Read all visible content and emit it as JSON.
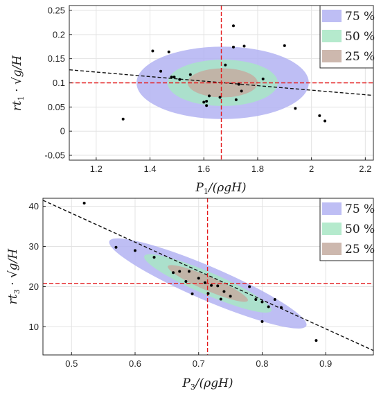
{
  "chart_data": [
    {
      "type": "scatter",
      "title": "",
      "xlabel": "P_1/(ρgH)",
      "ylabel": "rt_1 · √(g/H)",
      "xlabel_main": "P",
      "xlabel_sub": "1",
      "xlabel_rest": "/(ρgH)",
      "ylabel_main": "rt",
      "ylabel_sub": "1",
      "ylabel_rest": " · √g/H",
      "xlim": [
        1.1,
        2.23
      ],
      "ylim": [
        -0.06,
        0.26
      ],
      "xticks": [
        1.2,
        1.4,
        1.6,
        1.8,
        2.0,
        2.2
      ],
      "xtick_labels": [
        "1.2",
        "1.4",
        "1.6",
        "1.8",
        "2",
        "2.2"
      ],
      "yticks": [
        -0.05,
        0,
        0.05,
        0.1,
        0.15,
        0.2,
        0.25
      ],
      "ytick_labels": [
        "-0.05",
        "0",
        "0.05",
        "0.1",
        "0.15",
        "0.2",
        "0.25"
      ],
      "grid": true,
      "legend_position": "top-right",
      "legend": [
        "75 %",
        "50 %",
        "25 %"
      ],
      "points": [
        [
          1.3,
          0.025
        ],
        [
          1.41,
          0.166
        ],
        [
          1.44,
          0.124
        ],
        [
          1.47,
          0.164
        ],
        [
          1.48,
          0.112
        ],
        [
          1.49,
          0.112
        ],
        [
          1.51,
          0.107
        ],
        [
          1.55,
          0.117
        ],
        [
          1.6,
          0.06
        ],
        [
          1.61,
          0.053
        ],
        [
          1.61,
          0.062
        ],
        [
          1.62,
          0.073
        ],
        [
          1.66,
          0.07
        ],
        [
          1.68,
          0.137
        ],
        [
          1.71,
          0.218
        ],
        [
          1.71,
          0.174
        ],
        [
          1.72,
          0.065
        ],
        [
          1.73,
          0.097
        ],
        [
          1.74,
          0.083
        ],
        [
          1.75,
          0.176
        ],
        [
          1.82,
          0.108
        ],
        [
          1.9,
          0.177
        ],
        [
          1.94,
          0.047
        ],
        [
          2.03,
          0.032
        ],
        [
          2.05,
          0.021
        ]
      ],
      "mean": [
        1.665,
        0.1
      ],
      "ellipses": [
        {
          "level": "75 %",
          "cx": 1.67,
          "cy": 0.1,
          "rx": 0.32,
          "ry": 0.075,
          "fill": "#b3b3f2"
        },
        {
          "level": "50 %",
          "cx": 1.67,
          "cy": 0.1,
          "rx": 0.205,
          "ry": 0.048,
          "fill": "#a8e6c4"
        },
        {
          "level": "25 %",
          "cx": 1.67,
          "cy": 0.1,
          "rx": 0.13,
          "ry": 0.03,
          "fill": "#c4aba0"
        }
      ],
      "fit_line": [
        [
          1.1,
          0.127
        ],
        [
          2.23,
          0.074
        ]
      ]
    },
    {
      "type": "scatter",
      "title": "",
      "xlabel": "P_3/(ρgH)",
      "ylabel": "rt_3 · √(g/H)",
      "xlabel_main": "P",
      "xlabel_sub": "3",
      "xlabel_rest": "/(ρgH)",
      "ylabel_main": "rt",
      "ylabel_sub": "3",
      "ylabel_rest": " · √g/H",
      "xlim": [
        0.455,
        0.975
      ],
      "ylim": [
        3,
        42
      ],
      "xticks": [
        0.5,
        0.6,
        0.7,
        0.8,
        0.9
      ],
      "xtick_labels": [
        "0.5",
        "0.6",
        "0.7",
        "0.8",
        "0.9"
      ],
      "yticks": [
        10,
        20,
        30,
        40
      ],
      "ytick_labels": [
        "10",
        "20",
        "30",
        "40"
      ],
      "grid": true,
      "legend_position": "top-right",
      "legend": [
        "75 %",
        "50 %",
        "25 %"
      ],
      "points": [
        [
          0.52,
          40.8
        ],
        [
          0.57,
          29.8
        ],
        [
          0.6,
          29.0
        ],
        [
          0.63,
          27.3
        ],
        [
          0.66,
          23.5
        ],
        [
          0.67,
          23.8
        ],
        [
          0.68,
          21.3
        ],
        [
          0.685,
          23.8
        ],
        [
          0.69,
          18.2
        ],
        [
          0.7,
          22.1
        ],
        [
          0.71,
          21.0
        ],
        [
          0.715,
          18.3
        ],
        [
          0.72,
          20.3
        ],
        [
          0.73,
          20.2
        ],
        [
          0.735,
          16.9
        ],
        [
          0.74,
          18.8
        ],
        [
          0.75,
          17.6
        ],
        [
          0.78,
          20.0
        ],
        [
          0.79,
          16.8
        ],
        [
          0.8,
          16.2
        ],
        [
          0.8,
          11.3
        ],
        [
          0.81,
          15.0
        ],
        [
          0.82,
          16.8
        ],
        [
          0.83,
          14.8
        ],
        [
          0.885,
          6.6
        ]
      ],
      "mean": [
        0.714,
        20.8
      ],
      "ellipses": [
        {
          "level": "75 %",
          "cx": 0.7145,
          "cy": 20.8,
          "u": 0.155,
          "v": 0.012,
          "slope": -68,
          "fill": "#b3b3f2"
        },
        {
          "level": "50 %",
          "cx": 0.7145,
          "cy": 20.8,
          "u": 0.1,
          "v": 0.008,
          "slope": -68,
          "fill": "#a8e6c4"
        },
        {
          "level": "25 %",
          "cx": 0.7145,
          "cy": 20.8,
          "u": 0.063,
          "v": 0.005,
          "slope": -68,
          "fill": "#c4aba0"
        }
      ],
      "fit_line": [
        [
          0.455,
          41.5
        ],
        [
          0.975,
          4.1
        ]
      ]
    }
  ]
}
